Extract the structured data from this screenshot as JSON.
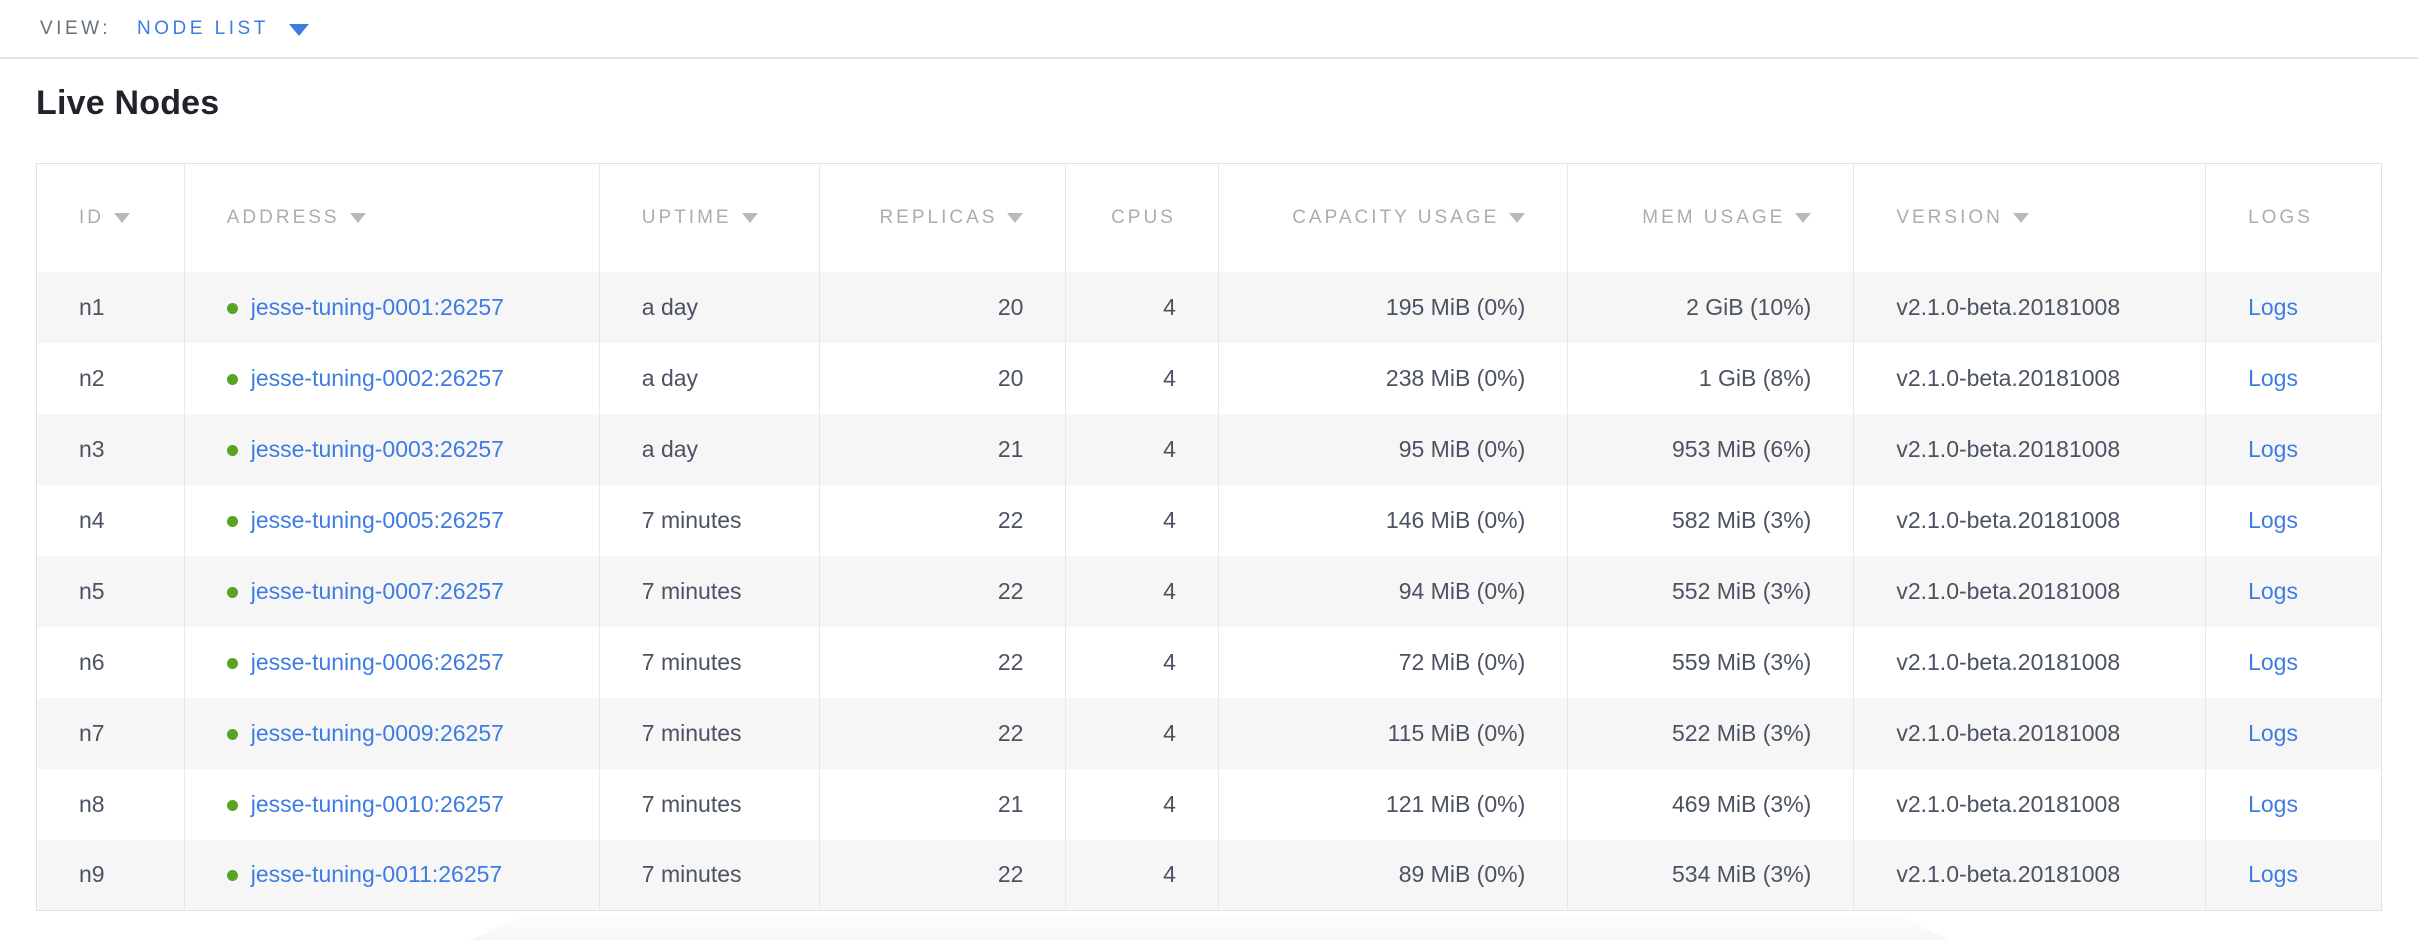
{
  "view_bar": {
    "label": "VIEW:",
    "selected": "NODE LIST"
  },
  "page": {
    "title": "Live Nodes"
  },
  "colors": {
    "link_blue": "#3e7ce2",
    "healthy_green": "#5ba224",
    "header_gray": "#a9aeb4",
    "cell_text": "#4b5362",
    "row_stripe": "#f6f6f7",
    "border": "#e0e1e2"
  },
  "table": {
    "columns": [
      {
        "label": "ID",
        "sortable": true,
        "align": "left",
        "key": "id"
      },
      {
        "label": "ADDRESS",
        "sortable": true,
        "align": "left",
        "key": "address"
      },
      {
        "label": "UPTIME",
        "sortable": true,
        "align": "left",
        "key": "uptime"
      },
      {
        "label": "REPLICAS",
        "sortable": true,
        "align": "right",
        "key": "replicas"
      },
      {
        "label": "CPUS",
        "sortable": false,
        "align": "right",
        "key": "cpus"
      },
      {
        "label": "CAPACITY USAGE",
        "sortable": true,
        "align": "right",
        "key": "capacity"
      },
      {
        "label": "MEM USAGE",
        "sortable": true,
        "align": "right",
        "key": "mem"
      },
      {
        "label": "VERSION",
        "sortable": true,
        "align": "left",
        "key": "version"
      },
      {
        "label": "LOGS",
        "sortable": false,
        "align": "left",
        "key": "logs"
      }
    ],
    "col_widths_pct": [
      6.3,
      17.7,
      9.4,
      10.5,
      6.5,
      14.9,
      12.2,
      15.0,
      7.5
    ],
    "logs_link_label": "Logs",
    "rows": [
      {
        "id": "n1",
        "address": "jesse-tuning-0001:26257",
        "status": "healthy",
        "uptime": "a day",
        "replicas": "20",
        "cpus": "4",
        "capacity": "195 MiB (0%)",
        "mem": "2 GiB (10%)",
        "version": "v2.1.0-beta.20181008"
      },
      {
        "id": "n2",
        "address": "jesse-tuning-0002:26257",
        "status": "healthy",
        "uptime": "a day",
        "replicas": "20",
        "cpus": "4",
        "capacity": "238 MiB (0%)",
        "mem": "1 GiB (8%)",
        "version": "v2.1.0-beta.20181008"
      },
      {
        "id": "n3",
        "address": "jesse-tuning-0003:26257",
        "status": "healthy",
        "uptime": "a day",
        "replicas": "21",
        "cpus": "4",
        "capacity": "95 MiB (0%)",
        "mem": "953 MiB (6%)",
        "version": "v2.1.0-beta.20181008"
      },
      {
        "id": "n4",
        "address": "jesse-tuning-0005:26257",
        "status": "healthy",
        "uptime": "7 minutes",
        "replicas": "22",
        "cpus": "4",
        "capacity": "146 MiB (0%)",
        "mem": "582 MiB (3%)",
        "version": "v2.1.0-beta.20181008"
      },
      {
        "id": "n5",
        "address": "jesse-tuning-0007:26257",
        "status": "healthy",
        "uptime": "7 minutes",
        "replicas": "22",
        "cpus": "4",
        "capacity": "94 MiB (0%)",
        "mem": "552 MiB (3%)",
        "version": "v2.1.0-beta.20181008"
      },
      {
        "id": "n6",
        "address": "jesse-tuning-0006:26257",
        "status": "healthy",
        "uptime": "7 minutes",
        "replicas": "22",
        "cpus": "4",
        "capacity": "72 MiB (0%)",
        "mem": "559 MiB (3%)",
        "version": "v2.1.0-beta.20181008"
      },
      {
        "id": "n7",
        "address": "jesse-tuning-0009:26257",
        "status": "healthy",
        "uptime": "7 minutes",
        "replicas": "22",
        "cpus": "4",
        "capacity": "115 MiB (0%)",
        "mem": "522 MiB (3%)",
        "version": "v2.1.0-beta.20181008"
      },
      {
        "id": "n8",
        "address": "jesse-tuning-0010:26257",
        "status": "healthy",
        "uptime": "7 minutes",
        "replicas": "21",
        "cpus": "4",
        "capacity": "121 MiB (0%)",
        "mem": "469 MiB (3%)",
        "version": "v2.1.0-beta.20181008"
      },
      {
        "id": "n9",
        "address": "jesse-tuning-0011:26257",
        "status": "healthy",
        "uptime": "7 minutes",
        "replicas": "22",
        "cpus": "4",
        "capacity": "89 MiB (0%)",
        "mem": "534 MiB (3%)",
        "version": "v2.1.0-beta.20181008"
      }
    ]
  }
}
